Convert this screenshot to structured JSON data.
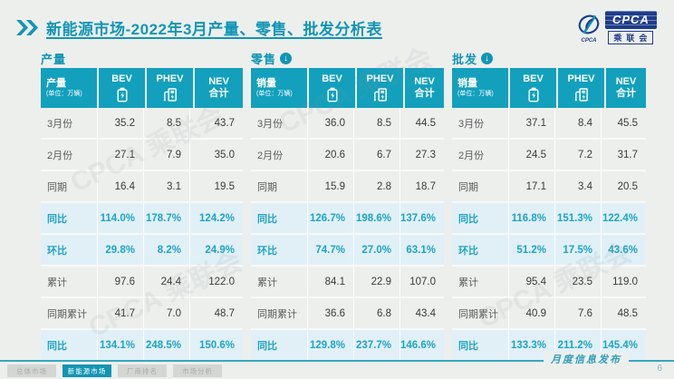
{
  "title": {
    "text": "新能源市场-2022年3月产量、零售、批发分析表"
  },
  "logo": {
    "acronym": "CPCA",
    "chinese": "乘联会",
    "swoosh_label": "CPCA"
  },
  "watermark": {
    "text": "CPCA 乘联会"
  },
  "colors": {
    "accent_teal": "#13a0bd",
    "title_teal": "#1095b5",
    "highlight_row_bg": "#e1f0f7",
    "highlight_text": "#1ea4c6",
    "logo_blue": "#1e3c8c",
    "page_bg": "#edefed"
  },
  "glyphs": {
    "down_arrow": "↓"
  },
  "chart_data": [
    {
      "type": "table",
      "title": "产量",
      "title_icon": null,
      "header": {
        "label": "产量",
        "unit": "(单位：万辆)"
      },
      "columns": [
        {
          "label": "BEV",
          "icon": "battery-icon"
        },
        {
          "label": "PHEV",
          "icon": "ev-charger-icon"
        },
        {
          "label": "NEV",
          "sub": "合计"
        }
      ],
      "rows": [
        {
          "label": "3月份",
          "values": [
            "35.2",
            "8.5",
            "43.7"
          ],
          "highlight": false
        },
        {
          "label": "2月份",
          "values": [
            "27.1",
            "7.9",
            "35.0"
          ],
          "highlight": false
        },
        {
          "label": "同期",
          "values": [
            "16.4",
            "3.1",
            "19.5"
          ],
          "highlight": false
        },
        {
          "label": "同比",
          "values": [
            "114.0%",
            "178.7%",
            "124.2%"
          ],
          "highlight": true
        },
        {
          "label": "环比",
          "values": [
            "29.8%",
            "8.2%",
            "24.9%"
          ],
          "highlight": true
        },
        {
          "label": "累计",
          "values": [
            "97.6",
            "24.4",
            "122.0"
          ],
          "highlight": false
        },
        {
          "label": "同期累计",
          "values": [
            "41.7",
            "7.0",
            "48.7"
          ],
          "highlight": false
        },
        {
          "label": "同比",
          "values": [
            "134.1%",
            "248.5%",
            "150.6%"
          ],
          "highlight": true
        }
      ]
    },
    {
      "type": "table",
      "title": "零售",
      "title_icon": "down-arrow-circle-icon",
      "header": {
        "label": "销量",
        "unit": "(单位：万辆)"
      },
      "columns": [
        {
          "label": "BEV",
          "icon": "battery-icon"
        },
        {
          "label": "PHEV",
          "icon": "ev-charger-icon"
        },
        {
          "label": "NEV",
          "sub": "合计"
        }
      ],
      "rows": [
        {
          "label": "3月份",
          "values": [
            "36.0",
            "8.5",
            "44.5"
          ],
          "highlight": false
        },
        {
          "label": "2月份",
          "values": [
            "20.6",
            "6.7",
            "27.3"
          ],
          "highlight": false
        },
        {
          "label": "同期",
          "values": [
            "15.9",
            "2.8",
            "18.7"
          ],
          "highlight": false
        },
        {
          "label": "同比",
          "values": [
            "126.7%",
            "198.6%",
            "137.6%"
          ],
          "highlight": true
        },
        {
          "label": "环比",
          "values": [
            "74.7%",
            "27.0%",
            "63.1%"
          ],
          "highlight": true
        },
        {
          "label": "累计",
          "values": [
            "84.1",
            "22.9",
            "107.0"
          ],
          "highlight": false
        },
        {
          "label": "同期累计",
          "values": [
            "36.6",
            "6.8",
            "43.4"
          ],
          "highlight": false
        },
        {
          "label": "同比",
          "values": [
            "129.8%",
            "237.7%",
            "146.6%"
          ],
          "highlight": true
        }
      ]
    },
    {
      "type": "table",
      "title": "批发",
      "title_icon": "down-arrow-circle-icon",
      "header": {
        "label": "销量",
        "unit": "(单位：万辆)"
      },
      "columns": [
        {
          "label": "BEV",
          "icon": "battery-icon"
        },
        {
          "label": "PHEV",
          "icon": "ev-charger-icon"
        },
        {
          "label": "NEV",
          "sub": "合计"
        }
      ],
      "rows": [
        {
          "label": "3月份",
          "values": [
            "37.1",
            "8.4",
            "45.5"
          ],
          "highlight": false
        },
        {
          "label": "2月份",
          "values": [
            "24.5",
            "7.2",
            "31.7"
          ],
          "highlight": false
        },
        {
          "label": "同期",
          "values": [
            "17.1",
            "3.4",
            "20.5"
          ],
          "highlight": false
        },
        {
          "label": "同比",
          "values": [
            "116.8%",
            "151.3%",
            "122.4%"
          ],
          "highlight": true
        },
        {
          "label": "环比",
          "values": [
            "51.2%",
            "17.5%",
            "43.6%"
          ],
          "highlight": true
        },
        {
          "label": "累计",
          "values": [
            "95.4",
            "23.5",
            "119.0"
          ],
          "highlight": false
        },
        {
          "label": "同期累计",
          "values": [
            "40.9",
            "7.6",
            "48.5"
          ],
          "highlight": false
        },
        {
          "label": "同比",
          "values": [
            "133.3%",
            "211.2%",
            "145.4%"
          ],
          "highlight": true
        }
      ]
    }
  ],
  "footer": {
    "tabs": [
      {
        "key": "overall",
        "label": "总体市场",
        "active": false
      },
      {
        "key": "nev",
        "label": "新能源市场",
        "active": true
      },
      {
        "key": "ranking",
        "label": "厂商排名",
        "active": false
      },
      {
        "key": "analysis",
        "label": "市场分析",
        "active": false
      }
    ],
    "release_label": "月度信息发布",
    "page_number": "6"
  }
}
